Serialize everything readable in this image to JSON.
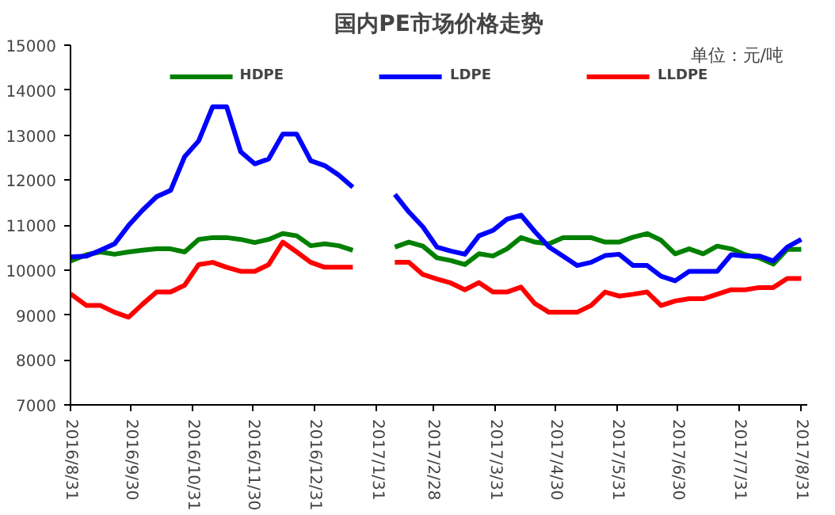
{
  "chart_data": {
    "type": "line",
    "title": "国内PE市场价格走势",
    "annotations": [
      "单位：元/吨"
    ],
    "x": [
      "2016-08-31",
      "2016-09-08",
      "2016-09-15",
      "2016-09-22",
      "2016-09-29",
      "2016-10-06",
      "2016-10-13",
      "2016-10-20",
      "2016-10-27",
      "2016-11-03",
      "2016-11-10",
      "2016-11-17",
      "2016-11-24",
      "2016-12-01",
      "2016-12-08",
      "2016-12-15",
      "2016-12-22",
      "2016-12-29",
      "2017-01-05",
      "2017-01-12",
      "2017-01-19",
      "2017-01-26",
      "2017-02-02",
      "2017-02-09",
      "2017-02-16",
      "2017-02-23",
      "2017-03-02",
      "2017-03-09",
      "2017-03-16",
      "2017-03-23",
      "2017-03-30",
      "2017-04-06",
      "2017-04-13",
      "2017-04-20",
      "2017-04-27",
      "2017-05-04",
      "2017-05-11",
      "2017-05-18",
      "2017-05-25",
      "2017-06-01",
      "2017-06-08",
      "2017-06-15",
      "2017-06-22",
      "2017-06-29",
      "2017-07-06",
      "2017-07-13",
      "2017-07-20",
      "2017-07-27",
      "2017-08-03",
      "2017-08-10",
      "2017-08-17",
      "2017-08-24",
      "2017-08-31"
    ],
    "series": [
      {
        "name": "HDPE",
        "color": "#008000",
        "values": [
          10200,
          10340,
          10400,
          10350,
          10400,
          10440,
          10470,
          10470,
          10400,
          10680,
          10720,
          10720,
          10680,
          10610,
          10680,
          10810,
          10760,
          10540,
          10580,
          10540,
          10440,
          null,
          null,
          10510,
          10620,
          10530,
          10270,
          10210,
          10120,
          10360,
          10310,
          10470,
          10720,
          10620,
          10580,
          10720,
          10720,
          10720,
          10620,
          10620,
          10730,
          10810,
          10660,
          10360,
          10470,
          10360,
          10530,
          10470,
          10340,
          10270,
          10130,
          10460,
          10460
        ]
      },
      {
        "name": "LDPE",
        "color": "#0000ff",
        "values": [
          10290,
          10310,
          10440,
          10580,
          10990,
          11330,
          11630,
          11770,
          12520,
          12870,
          13630,
          13630,
          12630,
          12360,
          12470,
          13020,
          13020,
          12430,
          12320,
          12110,
          11840,
          null,
          null,
          11680,
          11290,
          10960,
          10510,
          10420,
          10350,
          10760,
          10880,
          11130,
          11220,
          10850,
          10510,
          10310,
          10100,
          10170,
          10320,
          10350,
          10100,
          10100,
          9860,
          9760,
          9970,
          9970,
          9970,
          10340,
          10310,
          10310,
          10200,
          10510,
          10680
        ]
      },
      {
        "name": "LLDPE",
        "color": "#ff0000",
        "values": [
          9470,
          9210,
          9210,
          9060,
          8950,
          9240,
          9510,
          9510,
          9660,
          10120,
          10170,
          10060,
          9970,
          9970,
          10120,
          10620,
          10400,
          10170,
          10060,
          10060,
          10060,
          null,
          null,
          10170,
          10170,
          9900,
          9800,
          9710,
          9560,
          9720,
          9510,
          9510,
          9620,
          9250,
          9060,
          9060,
          9060,
          9210,
          9510,
          9420,
          9460,
          9510,
          9210,
          9310,
          9360,
          9360,
          9460,
          9560,
          9560,
          9610,
          9610,
          9810,
          9810
        ]
      }
    ],
    "xlim": [
      "2016-08-31",
      "2017-09-03"
    ],
    "xticks": [
      {
        "value": "2016-08-31",
        "label": "2016/8/31"
      },
      {
        "value": "2016-09-30",
        "label": "2016/9/30"
      },
      {
        "value": "2016-10-31",
        "label": "2016/10/31"
      },
      {
        "value": "2016-11-30",
        "label": "2016/11/30"
      },
      {
        "value": "2016-12-31",
        "label": "2016/12/31"
      },
      {
        "value": "2017-01-31",
        "label": "2017/1/31"
      },
      {
        "value": "2017-02-28",
        "label": "2017/2/28"
      },
      {
        "value": "2017-03-31",
        "label": "2017/3/31"
      },
      {
        "value": "2017-04-30",
        "label": "2017/4/30"
      },
      {
        "value": "2017-05-31",
        "label": "2017/5/31"
      },
      {
        "value": "2017-06-30",
        "label": "2017/6/30"
      },
      {
        "value": "2017-07-31",
        "label": "2017/7/31"
      },
      {
        "value": "2017-08-31",
        "label": "2017/8/31"
      }
    ],
    "ylim": [
      7000,
      15000
    ],
    "yticks": [
      7000,
      8000,
      9000,
      10000,
      11000,
      12000,
      13000,
      14000,
      15000
    ],
    "grid": false,
    "legend": "top"
  }
}
